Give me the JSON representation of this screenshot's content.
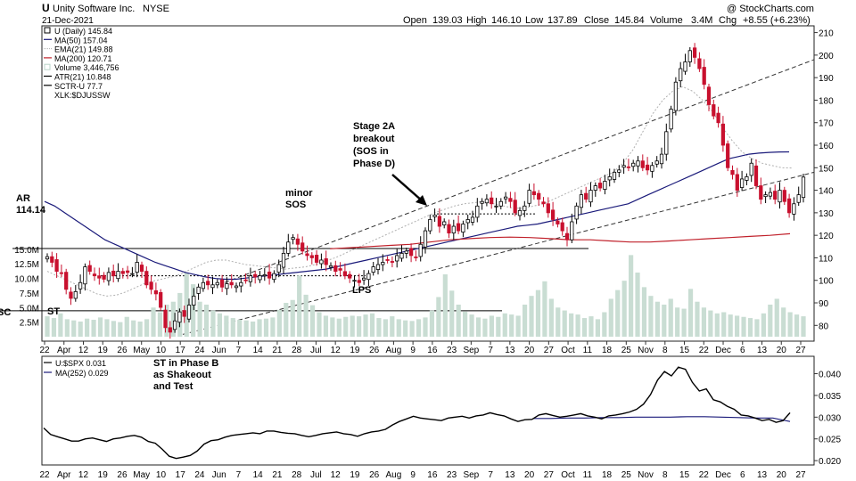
{
  "header": {
    "title": "Unity Software Inc.",
    "exchange": "NYSE",
    "symbol": "U",
    "date": "21-Dec-2021",
    "watermark": "@ StockCharts.com",
    "open_label": "Open",
    "open": "139.03",
    "high_label": "High",
    "high": "146.10",
    "low_label": "Low",
    "low": "137.89",
    "close_label": "Close",
    "close": "145.84",
    "volume_label": "Volume",
    "volume": "3.4M",
    "chg_label": "Chg",
    "chg": "+8.55 (+6.23%)"
  },
  "legend": [
    {
      "text": "U (Daily) 145.84",
      "color": "#000000",
      "swatch": "box"
    },
    {
      "text": "MA(50) 157.04",
      "color": "#1a1a7a",
      "swatch": "line"
    },
    {
      "text": "EMA(21) 149.88",
      "color": "#b0b0b0",
      "swatch": "dotted"
    },
    {
      "text": "MA(200) 120.71",
      "color": "#c0202a",
      "swatch": "line"
    },
    {
      "text": "Volume 3,446,756",
      "color": "#b9d3c8",
      "swatch": "box"
    },
    {
      "text": "ATR(21) 10.848",
      "color": "#000000",
      "swatch": "line"
    },
    {
      "text": "SCTR-U 77.7",
      "color": "#000000",
      "swatch": "line"
    },
    {
      "text": "XLK:$DJUSSW",
      "color": "#000000",
      "swatch": "none"
    }
  ],
  "lower_legend": [
    {
      "text": "U:$SPX 0.031",
      "color": "#000000"
    },
    {
      "text": "MA(252) 0.029",
      "color": "#1a1a7a"
    }
  ],
  "colors": {
    "up": "#000000",
    "down": "#c8102e",
    "ma50": "#1a1a7a",
    "ema21": "#b0b0b0",
    "ma200": "#c0202a",
    "volume": "#c9ddd3"
  },
  "annotations": {
    "stage2a": [
      "Stage 2A",
      "breakout",
      "(SOS in",
      "Phase D)"
    ],
    "minor_sos": [
      "minor",
      "SOS"
    ],
    "ar": [
      "AR",
      "114.14"
    ],
    "lps": "LPS",
    "sc": "SC",
    "st": "ST",
    "st_phase_b": [
      "ST in Phase B",
      "as Shakeout",
      "and Test"
    ]
  },
  "chart_data": {
    "type": "candlestick",
    "dates": [
      "2021-03-22",
      "2021-12-21"
    ],
    "x_labels": [
      "22",
      "Apr",
      "12",
      "19",
      "26",
      "May",
      "10",
      "17",
      "24",
      "Jun",
      "7",
      "14",
      "21",
      "28",
      "Jul",
      "12",
      "19",
      "26",
      "Aug",
      "9",
      "16",
      "23",
      "Sep",
      "7",
      "13",
      "20",
      "27",
      "Oct",
      "11",
      "18",
      "25",
      "Nov",
      "8",
      "15",
      "22",
      "Dec",
      "6",
      "13",
      "20",
      "27"
    ],
    "price_axis": {
      "ticks": [
        80,
        90,
        100,
        110,
        120,
        130,
        140,
        150,
        160,
        170,
        180,
        190,
        200,
        210
      ],
      "range": [
        73,
        213
      ]
    },
    "volume_axis": {
      "ticks": [
        "2.5M",
        "5.0M",
        "7.5M",
        "10.0M",
        "12.5M",
        "15.0M"
      ],
      "range_millions": [
        0,
        16.5
      ]
    },
    "ratio_axis": {
      "ticks": [
        "0.020",
        "0.025",
        "0.030",
        "0.035",
        "0.040"
      ],
      "range": [
        0.019,
        0.044
      ]
    },
    "horizontal_levels": [
      {
        "name": "AR",
        "value": 114.14
      },
      {
        "name": "SC/ST",
        "value": 86.5
      }
    ],
    "closes": [
      110.5,
      108,
      104,
      103,
      96,
      92,
      95,
      99,
      106,
      104,
      102,
      101,
      100.5,
      103.5,
      102,
      104,
      103,
      103.5,
      103,
      108,
      104,
      98,
      96,
      94,
      88,
      79,
      77,
      82,
      86,
      84,
      89,
      93,
      97,
      99,
      98,
      98,
      99,
      97,
      98.5,
      98,
      97.5,
      99,
      100,
      102,
      101.5,
      102,
      102.5,
      101,
      103,
      107,
      112,
      117,
      119,
      116,
      113,
      111,
      110,
      108,
      109,
      107,
      106.5,
      104,
      104.5,
      102,
      101,
      100,
      99,
      101,
      103,
      106,
      107,
      108,
      109,
      108,
      111,
      112,
      113,
      111,
      110,
      116,
      122,
      127,
      129,
      124,
      126,
      121,
      124,
      122,
      125,
      127,
      128,
      133,
      135,
      136,
      134,
      133,
      135,
      137,
      135,
      130,
      131,
      133,
      140,
      138,
      136,
      134,
      130,
      127,
      125,
      122,
      118,
      126,
      133,
      138,
      136,
      140,
      142,
      141,
      144,
      146,
      148,
      149,
      151,
      150,
      152,
      153,
      150,
      149,
      151,
      153,
      156,
      166,
      176,
      188,
      194,
      197,
      202,
      199,
      194,
      187,
      178,
      173,
      170,
      160,
      150,
      147,
      140,
      145,
      146,
      152,
      142,
      136,
      138,
      139,
      136,
      140,
      135,
      130,
      134,
      138,
      145.84
    ],
    "ma50": [
      135,
      133,
      130,
      127,
      124,
      121,
      118,
      116,
      114,
      112,
      110,
      108,
      106.5,
      105,
      103.5,
      102.5,
      101.5,
      100.8,
      100.5,
      100.5,
      101,
      101.5,
      102,
      102.5,
      103,
      103.5,
      104,
      104.5,
      105,
      106,
      107,
      108,
      109,
      110,
      111,
      112,
      113,
      114,
      115,
      116,
      117,
      118,
      119,
      120,
      121,
      122,
      123,
      124,
      124.5,
      125,
      126,
      127,
      128,
      129,
      130,
      131,
      132,
      133,
      134,
      136,
      138,
      140,
      142,
      144,
      146,
      148,
      150,
      152,
      154,
      155,
      156,
      156.5,
      156.8,
      157,
      157.04
    ],
    "ma200": [
      114,
      114.5,
      115,
      115.5,
      116,
      117,
      118,
      118.5,
      119,
      119.2,
      119,
      118.5,
      118,
      118,
      117.5,
      117,
      117,
      117.5,
      118,
      118.5,
      119,
      119.5,
      120,
      120.71
    ],
    "ema21": [
      104,
      102,
      100,
      98,
      96,
      94,
      93,
      93.5,
      95,
      97,
      99,
      100,
      101,
      102,
      104,
      106,
      108,
      109,
      109,
      108,
      107,
      106.5,
      106,
      105.5,
      105,
      105.5,
      106,
      107,
      108.5,
      110,
      112,
      114,
      116,
      118,
      120,
      122,
      124,
      126,
      128,
      130,
      131.5,
      133,
      134,
      134.5,
      135,
      134,
      133,
      132,
      132,
      133,
      134,
      136,
      138,
      140,
      142,
      144,
      146,
      148,
      152,
      158,
      166,
      174,
      180,
      184,
      186,
      184,
      180,
      175,
      168,
      162,
      157,
      154,
      152,
      151,
      150,
      149.88
    ],
    "volume_millions": [
      3.5,
      3.2,
      4.0,
      3.0,
      2.8,
      2.6,
      3.1,
      2.9,
      3.3,
      3.0,
      2.7,
      2.5,
      3.4,
      2.8,
      2.6,
      3.0,
      5.0,
      4.2,
      5.5,
      6.0,
      7.5,
      11.0,
      9.0,
      6.0,
      5.5,
      4.5,
      4.0,
      3.6,
      3.2,
      2.9,
      2.8,
      2.6,
      3.0,
      3.1,
      3.3,
      4.6,
      5.8,
      6.3,
      10.5,
      7.2,
      5.4,
      4.2,
      3.6,
      3.3,
      3.1,
      3.4,
      3.6,
      3.5,
      3.8,
      4.0,
      3.2,
      3.0,
      3.5,
      3.0,
      2.8,
      2.7,
      3.0,
      3.3,
      4.5,
      6.8,
      10.7,
      7.9,
      5.5,
      4.3,
      3.8,
      3.3,
      3.1,
      3.6,
      3.4,
      4.0,
      3.8,
      3.6,
      5.5,
      7.0,
      8.0,
      9.5,
      6.5,
      5.0,
      4.5,
      4.0,
      3.8,
      3.2,
      3.5,
      3.0,
      4.2,
      6.5,
      8.0,
      9.6,
      14.0,
      11.0,
      8.5,
      7.0,
      6.0,
      5.5,
      6.5,
      5.0,
      4.8,
      8.2,
      6.0,
      5.0,
      4.5,
      4.0,
      4.2,
      3.8,
      3.6,
      3.4,
      3.2,
      3.0,
      4.0,
      5.5,
      6.5,
      5.0,
      4.2,
      3.8,
      3.5
    ],
    "ratio": [
      0.0275,
      0.026,
      0.0255,
      0.025,
      0.0245,
      0.0245,
      0.025,
      0.0252,
      0.0248,
      0.0244,
      0.025,
      0.0252,
      0.0256,
      0.0258,
      0.0254,
      0.0244,
      0.024,
      0.0226,
      0.021,
      0.0205,
      0.0208,
      0.0212,
      0.0222,
      0.0238,
      0.0246,
      0.0248,
      0.0254,
      0.0258,
      0.026,
      0.0262,
      0.0264,
      0.0262,
      0.0268,
      0.0268,
      0.0265,
      0.0263,
      0.0262,
      0.0258,
      0.0255,
      0.0258,
      0.0262,
      0.0264,
      0.0266,
      0.0262,
      0.026,
      0.0256,
      0.0262,
      0.0266,
      0.0268,
      0.0272,
      0.0282,
      0.029,
      0.0296,
      0.0302,
      0.0298,
      0.0296,
      0.0294,
      0.0292,
      0.0298,
      0.03,
      0.0302,
      0.0298,
      0.0303,
      0.0305,
      0.031,
      0.0306,
      0.0303,
      0.0296,
      0.029,
      0.0294,
      0.0295,
      0.0305,
      0.0308,
      0.0304,
      0.03,
      0.0302,
      0.0305,
      0.0308,
      0.0303,
      0.03,
      0.0296,
      0.0303,
      0.0305,
      0.0308,
      0.0312,
      0.0318,
      0.033,
      0.0352,
      0.0385,
      0.0405,
      0.0395,
      0.0415,
      0.041,
      0.038,
      0.036,
      0.0365,
      0.034,
      0.0335,
      0.0325,
      0.0318,
      0.0305,
      0.0303,
      0.0298,
      0.0292,
      0.0295,
      0.0288,
      0.0292,
      0.031
    ],
    "ratio_ma252": [
      0.0297,
      0.0297,
      0.0298,
      0.0298,
      0.0299,
      0.0299,
      0.03,
      0.03,
      0.03,
      0.0301,
      0.0301,
      0.03,
      0.0299,
      0.0298,
      0.0298,
      0.029
    ]
  }
}
